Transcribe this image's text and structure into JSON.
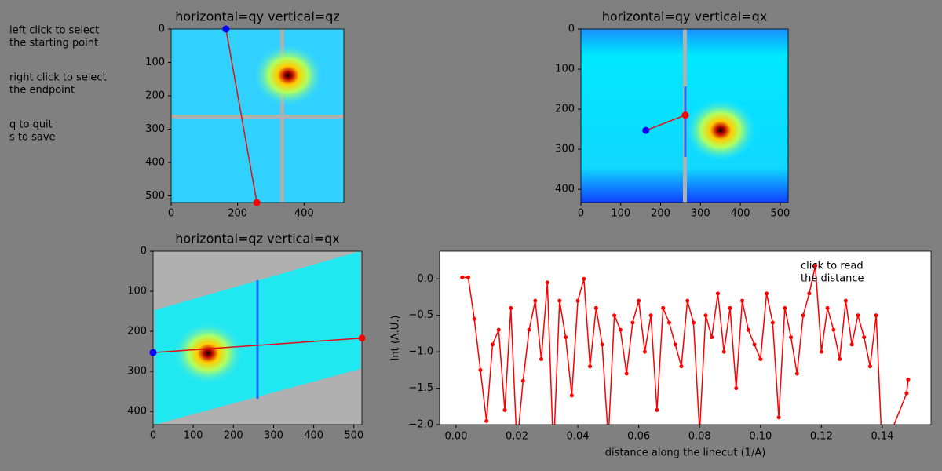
{
  "instructions": [
    [
      "left click to select",
      "the starting point"
    ],
    [
      "right click to select",
      "the endpoint"
    ],
    [
      "q to quit",
      "s to save"
    ]
  ],
  "panels": [
    {
      "title": "horizontal=qy  vertical=qz",
      "xlim": [
        0,
        520
      ],
      "ylim": [
        520,
        0
      ],
      "xticks": [
        0,
        200,
        400
      ],
      "yticks": [
        0,
        100,
        200,
        300,
        400,
        500
      ],
      "start": [
        165,
        0
      ],
      "end": [
        258,
        520
      ]
    },
    {
      "title": "horizontal=qy  vertical=qx",
      "xlim": [
        0,
        520
      ],
      "ylim": [
        433,
        0
      ],
      "xticks": [
        0,
        100,
        200,
        300,
        400,
        500
      ],
      "yticks": [
        0,
        100,
        200,
        300,
        400
      ],
      "start": [
        163,
        253
      ],
      "end": [
        262,
        215
      ]
    },
    {
      "title": "horizontal=qz  vertical=qx",
      "xlim": [
        0,
        520
      ],
      "ylim": [
        433,
        0
      ],
      "xticks": [
        0,
        100,
        200,
        300,
        400,
        500
      ],
      "yticks": [
        0,
        100,
        200,
        300,
        400
      ],
      "start": [
        0,
        253
      ],
      "end": [
        520,
        217
      ]
    }
  ],
  "linecut": {
    "type": "line",
    "xlabel": "distance along the linecut (1/A)",
    "ylabel": "Int (A.U.)",
    "annotation": [
      "click to read",
      "the distance"
    ],
    "color": "#ff0000",
    "xlim": [
      -0.0054,
      0.156
    ],
    "ylim": [
      -2,
      0.38
    ],
    "xticks": [
      {
        "value": 0,
        "label": "0.00"
      },
      0.02,
      0.04,
      0.06,
      0.08,
      {
        "value": 0.1,
        "label": "0.10"
      },
      0.12,
      0.14
    ],
    "yticks": [
      {
        "value": -2,
        "label": "−2.0"
      },
      {
        "value": -1.5,
        "label": "−1.5"
      },
      {
        "value": -1,
        "label": "−1.0"
      },
      {
        "value": -0.5,
        "label": "−0.5"
      },
      {
        "value": 0,
        "label": "0.0"
      }
    ],
    "x": [
      0.002,
      0.004,
      0.006,
      0.008,
      0.01,
      0.012,
      0.014,
      0.016,
      0.018,
      0.02,
      0.022,
      0.024,
      0.026,
      0.028,
      0.03,
      0.032,
      0.034,
      0.036,
      0.038,
      0.04,
      0.042,
      0.044,
      0.046,
      0.048,
      0.05,
      0.052,
      0.054,
      0.056,
      0.058,
      0.06,
      0.062,
      0.064,
      0.066,
      0.068,
      0.07,
      0.072,
      0.074,
      0.076,
      0.078,
      0.08,
      0.082,
      0.084,
      0.086,
      0.088,
      0.09,
      0.092,
      0.094,
      0.096,
      0.098,
      0.1,
      0.102,
      0.104,
      0.106,
      0.108,
      0.11,
      0.112,
      0.114,
      0.116,
      0.118,
      0.12,
      0.122,
      0.124,
      0.126,
      0.128,
      0.13,
      0.132,
      0.134,
      0.136,
      0.138,
      0.14,
      0.148,
      0.1485
    ],
    "values": [
      0.02,
      0.02,
      -0.55,
      -1.25,
      -1.95,
      -0.9,
      -0.7,
      -1.8,
      -0.4,
      -2.3,
      -1.4,
      -0.7,
      -0.3,
      -1.1,
      -0.05,
      -2.4,
      -0.3,
      -0.8,
      -1.6,
      -0.3,
      0.0,
      -1.2,
      -0.4,
      -0.9,
      -2.2,
      -0.5,
      -0.7,
      -1.3,
      -0.6,
      -0.3,
      -1.0,
      -0.5,
      -1.8,
      -0.4,
      -0.6,
      -0.9,
      -1.2,
      -0.3,
      -0.6,
      -2.1,
      -0.5,
      -0.8,
      -0.2,
      -1.0,
      -0.4,
      -1.5,
      -0.3,
      -0.7,
      -0.9,
      -1.1,
      -0.2,
      -0.6,
      -1.9,
      -0.4,
      -0.8,
      -1.3,
      -0.5,
      -0.2,
      0.18,
      -1.0,
      -0.4,
      -0.7,
      -1.1,
      -0.3,
      -0.9,
      -0.5,
      -0.8,
      -1.2,
      -0.5,
      -2.4,
      -1.57,
      -1.38
    ]
  }
}
